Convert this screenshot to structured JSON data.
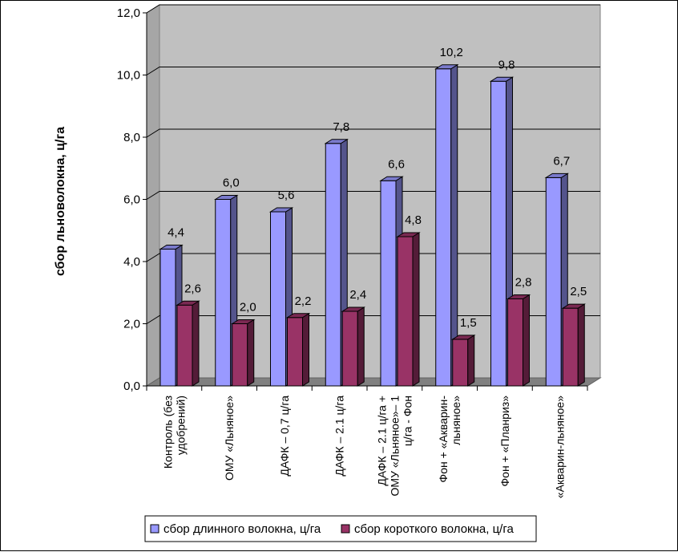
{
  "chart_data": {
    "type": "bar",
    "ylabel": "сбор льноволокна, ц/га",
    "ylim": [
      0,
      12
    ],
    "yticks": [
      "0,0",
      "2,0",
      "4,0",
      "6,0",
      "8,0",
      "10,0",
      "12,0"
    ],
    "grid": true,
    "legend_position": "bottom",
    "categories": [
      [
        "Контроль (без",
        "удобрений)"
      ],
      [
        "ОМУ «Льняное»"
      ],
      [
        "ДАФК – 0,7 ц/га"
      ],
      [
        "ДАФК – 2.1 ц/га"
      ],
      [
        "ДАФК – 2.1 ц/га +",
        "ОМУ «Льняное»– 1",
        "ц/га - Фон"
      ],
      [
        "Фон + «Акварин-",
        "льняное»"
      ],
      [
        "Фон + «Планриз»"
      ],
      [
        "«Акварин-льняное»"
      ]
    ],
    "series": [
      {
        "name": "сбор длинного волокна, ц/га",
        "color": "#9999ff",
        "values": [
          4.4,
          6.0,
          5.6,
          7.8,
          6.6,
          10.2,
          9.8,
          6.7
        ],
        "labels": [
          "4,4",
          "6,0",
          "5,6",
          "7,8",
          "6,6",
          "10,2",
          "9,8",
          "6,7"
        ]
      },
      {
        "name": "сбор короткого волокна, ц/га",
        "color": "#993366",
        "values": [
          2.6,
          2.0,
          2.2,
          2.4,
          4.8,
          1.5,
          2.8,
          2.5
        ],
        "labels": [
          "2,6",
          "2,0",
          "2,2",
          "2,4",
          "4,8",
          "1,5",
          "2,8",
          "2,5"
        ]
      }
    ]
  }
}
